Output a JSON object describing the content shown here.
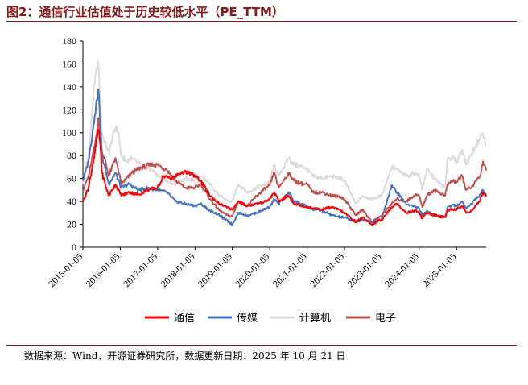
{
  "figure": {
    "title": "图2：通信行业估值处于历史较低水平（PE_TTM）",
    "source": "数据来源：Wind、开源证券研究所，数据更新日期：2025 年 10 月 21 日"
  },
  "chart_data": {
    "type": "line",
    "title": "",
    "xlabel": "",
    "ylabel": "",
    "ylim": [
      0,
      180
    ],
    "yticks": [
      0,
      20,
      40,
      60,
      80,
      100,
      120,
      140,
      160,
      180
    ],
    "xlim": [
      "2015-01-05",
      "2025-10-21"
    ],
    "xticks": [
      "2015-01-05",
      "2016-01-05",
      "2017-01-05",
      "2018-01-05",
      "2019-01-05",
      "2020-01-05",
      "2021-01-05",
      "2022-01-05",
      "2023-01-05",
      "2024-01-05",
      "2025-01-05"
    ],
    "grid": false,
    "legend_position": "bottom",
    "series": [
      {
        "name": "计算机",
        "color": "#dcdcdc",
        "points": [
          [
            "2015-01-05",
            55
          ],
          [
            "2015-03-01",
            80
          ],
          [
            "2015-04-20",
            135
          ],
          [
            "2015-05-20",
            155
          ],
          [
            "2015-06-05",
            160
          ],
          [
            "2015-06-25",
            130
          ],
          [
            "2015-07-10",
            100
          ],
          [
            "2015-08-20",
            88
          ],
          [
            "2015-09-15",
            82
          ],
          [
            "2015-10-20",
            95
          ],
          [
            "2015-11-20",
            105
          ],
          [
            "2015-12-20",
            100
          ],
          [
            "2016-01-15",
            80
          ],
          [
            "2016-03-01",
            75
          ],
          [
            "2016-05-01",
            78
          ],
          [
            "2016-08-01",
            72
          ],
          [
            "2016-11-01",
            68
          ],
          [
            "2017-01-05",
            62
          ],
          [
            "2017-04-01",
            58
          ],
          [
            "2017-07-01",
            55
          ],
          [
            "2017-10-01",
            60
          ],
          [
            "2018-01-05",
            58
          ],
          [
            "2018-03-01",
            62
          ],
          [
            "2018-06-01",
            55
          ],
          [
            "2018-09-01",
            45
          ],
          [
            "2018-12-01",
            40
          ],
          [
            "2019-01-05",
            40
          ],
          [
            "2019-03-01",
            55
          ],
          [
            "2019-06-01",
            48
          ],
          [
            "2019-09-01",
            52
          ],
          [
            "2019-12-01",
            55
          ],
          [
            "2020-01-05",
            58
          ],
          [
            "2020-02-20",
            72
          ],
          [
            "2020-04-01",
            62
          ],
          [
            "2020-07-10",
            78
          ],
          [
            "2020-09-01",
            72
          ],
          [
            "2020-12-01",
            70
          ],
          [
            "2021-01-05",
            68
          ],
          [
            "2021-03-01",
            62
          ],
          [
            "2021-06-01",
            60
          ],
          [
            "2021-09-01",
            62
          ],
          [
            "2021-12-01",
            60
          ],
          [
            "2022-01-05",
            58
          ],
          [
            "2022-03-01",
            48
          ],
          [
            "2022-04-27",
            38
          ],
          [
            "2022-07-01",
            45
          ],
          [
            "2022-10-01",
            42
          ],
          [
            "2023-01-05",
            45
          ],
          [
            "2023-04-10",
            70
          ],
          [
            "2023-06-01",
            68
          ],
          [
            "2023-09-01",
            62
          ],
          [
            "2023-12-01",
            65
          ],
          [
            "2024-01-05",
            63
          ],
          [
            "2024-02-05",
            50
          ],
          [
            "2024-03-20",
            68
          ],
          [
            "2024-06-01",
            60
          ],
          [
            "2024-09-15",
            52
          ],
          [
            "2024-10-08",
            78
          ],
          [
            "2024-12-01",
            78
          ],
          [
            "2025-01-05",
            75
          ],
          [
            "2025-03-01",
            85
          ],
          [
            "2025-04-08",
            72
          ],
          [
            "2025-06-01",
            82
          ],
          [
            "2025-08-20",
            95
          ],
          [
            "2025-09-15",
            100
          ],
          [
            "2025-10-21",
            89
          ]
        ]
      },
      {
        "name": "电子",
        "color": "#c0504d",
        "points": [
          [
            "2015-01-05",
            50
          ],
          [
            "2015-03-01",
            62
          ],
          [
            "2015-05-01",
            88
          ],
          [
            "2015-06-05",
            113
          ],
          [
            "2015-07-08",
            85
          ],
          [
            "2015-08-20",
            72
          ],
          [
            "2015-09-15",
            62
          ],
          [
            "2015-11-20",
            78
          ],
          [
            "2016-01-15",
            55
          ],
          [
            "2016-05-01",
            65
          ],
          [
            "2016-08-01",
            70
          ],
          [
            "2016-11-01",
            72
          ],
          [
            "2017-01-05",
            72
          ],
          [
            "2017-04-01",
            68
          ],
          [
            "2017-07-01",
            58
          ],
          [
            "2017-10-01",
            52
          ],
          [
            "2018-01-05",
            52
          ],
          [
            "2018-03-01",
            55
          ],
          [
            "2018-06-01",
            42
          ],
          [
            "2018-09-01",
            32
          ],
          [
            "2018-12-01",
            27
          ],
          [
            "2019-01-05",
            27
          ],
          [
            "2019-03-01",
            40
          ],
          [
            "2019-06-01",
            36
          ],
          [
            "2019-09-01",
            45
          ],
          [
            "2019-12-01",
            52
          ],
          [
            "2020-01-05",
            54
          ],
          [
            "2020-02-20",
            65
          ],
          [
            "2020-04-01",
            52
          ],
          [
            "2020-07-10",
            65
          ],
          [
            "2020-09-01",
            58
          ],
          [
            "2020-12-01",
            55
          ],
          [
            "2021-01-05",
            55
          ],
          [
            "2021-03-01",
            48
          ],
          [
            "2021-06-01",
            48
          ],
          [
            "2021-09-01",
            45
          ],
          [
            "2021-12-01",
            44
          ],
          [
            "2022-01-05",
            42
          ],
          [
            "2022-04-27",
            28
          ],
          [
            "2022-07-01",
            33
          ],
          [
            "2022-10-01",
            22
          ],
          [
            "2023-01-05",
            28
          ],
          [
            "2023-04-10",
            38
          ],
          [
            "2023-06-01",
            42
          ],
          [
            "2023-09-01",
            40
          ],
          [
            "2023-12-01",
            46
          ],
          [
            "2024-01-05",
            45
          ],
          [
            "2024-02-05",
            35
          ],
          [
            "2024-03-20",
            45
          ],
          [
            "2024-06-01",
            50
          ],
          [
            "2024-09-15",
            45
          ],
          [
            "2024-10-08",
            55
          ],
          [
            "2024-12-01",
            58
          ],
          [
            "2025-01-05",
            57
          ],
          [
            "2025-03-01",
            62
          ],
          [
            "2025-04-08",
            50
          ],
          [
            "2025-06-01",
            52
          ],
          [
            "2025-08-20",
            62
          ],
          [
            "2025-09-20",
            75
          ],
          [
            "2025-10-21",
            67
          ]
        ]
      },
      {
        "name": "传媒",
        "color": "#4472c4",
        "points": [
          [
            "2015-01-05",
            58
          ],
          [
            "2015-03-01",
            75
          ],
          [
            "2015-05-01",
            115
          ],
          [
            "2015-06-05",
            138
          ],
          [
            "2015-06-25",
            110
          ],
          [
            "2015-07-10",
            80
          ],
          [
            "2015-08-20",
            65
          ],
          [
            "2015-09-15",
            55
          ],
          [
            "2015-11-20",
            65
          ],
          [
            "2016-01-15",
            52
          ],
          [
            "2016-04-01",
            55
          ],
          [
            "2016-07-01",
            50
          ],
          [
            "2016-10-01",
            52
          ],
          [
            "2017-01-05",
            50
          ],
          [
            "2017-04-01",
            48
          ],
          [
            "2017-07-01",
            40
          ],
          [
            "2017-10-01",
            38
          ],
          [
            "2018-01-05",
            36
          ],
          [
            "2018-03-01",
            38
          ],
          [
            "2018-06-01",
            32
          ],
          [
            "2018-09-01",
            28
          ],
          [
            "2018-12-01",
            22
          ],
          [
            "2019-01-05",
            20
          ],
          [
            "2019-03-01",
            30
          ],
          [
            "2019-06-01",
            28
          ],
          [
            "2019-09-01",
            30
          ],
          [
            "2019-12-01",
            34
          ],
          [
            "2020-01-05",
            35
          ],
          [
            "2020-02-20",
            42
          ],
          [
            "2020-04-01",
            38
          ],
          [
            "2020-07-10",
            48
          ],
          [
            "2020-09-01",
            40
          ],
          [
            "2020-12-01",
            37
          ],
          [
            "2021-01-05",
            36
          ],
          [
            "2021-03-01",
            33
          ],
          [
            "2021-06-01",
            32
          ],
          [
            "2021-09-01",
            28
          ],
          [
            "2021-12-01",
            26
          ],
          [
            "2022-01-05",
            26
          ],
          [
            "2022-04-27",
            22
          ],
          [
            "2022-07-01",
            24
          ],
          [
            "2022-10-01",
            22
          ],
          [
            "2023-01-05",
            25
          ],
          [
            "2023-04-10",
            54
          ],
          [
            "2023-06-01",
            48
          ],
          [
            "2023-09-01",
            38
          ],
          [
            "2023-12-01",
            35
          ],
          [
            "2024-01-05",
            34
          ],
          [
            "2024-02-05",
            28
          ],
          [
            "2024-03-20",
            32
          ],
          [
            "2024-06-01",
            28
          ],
          [
            "2024-09-15",
            26
          ],
          [
            "2024-10-08",
            35
          ],
          [
            "2024-12-01",
            37
          ],
          [
            "2025-01-05",
            36
          ],
          [
            "2025-03-01",
            40
          ],
          [
            "2025-04-08",
            34
          ],
          [
            "2025-06-01",
            38
          ],
          [
            "2025-08-20",
            46
          ],
          [
            "2025-09-20",
            50
          ],
          [
            "2025-10-21",
            45
          ]
        ]
      },
      {
        "name": "通信",
        "color": "#ff0000",
        "points": [
          [
            "2015-01-05",
            40
          ],
          [
            "2015-03-01",
            52
          ],
          [
            "2015-05-01",
            82
          ],
          [
            "2015-06-05",
            103
          ],
          [
            "2015-06-25",
            90
          ],
          [
            "2015-07-10",
            65
          ],
          [
            "2015-08-20",
            52
          ],
          [
            "2015-09-15",
            45
          ],
          [
            "2015-11-20",
            55
          ],
          [
            "2016-01-15",
            45
          ],
          [
            "2016-04-01",
            48
          ],
          [
            "2016-07-01",
            46
          ],
          [
            "2016-10-01",
            50
          ],
          [
            "2017-01-05",
            52
          ],
          [
            "2017-03-01",
            62
          ],
          [
            "2017-06-01",
            60
          ],
          [
            "2017-09-01",
            66
          ],
          [
            "2017-12-01",
            64
          ],
          [
            "2018-01-05",
            62
          ],
          [
            "2018-03-01",
            58
          ],
          [
            "2018-06-01",
            45
          ],
          [
            "2018-09-01",
            38
          ],
          [
            "2018-12-01",
            34
          ],
          [
            "2019-01-05",
            33
          ],
          [
            "2019-03-01",
            40
          ],
          [
            "2019-06-01",
            36
          ],
          [
            "2019-09-01",
            38
          ],
          [
            "2019-12-01",
            40
          ],
          [
            "2020-01-05",
            42
          ],
          [
            "2020-02-20",
            48
          ],
          [
            "2020-04-01",
            40
          ],
          [
            "2020-07-10",
            45
          ],
          [
            "2020-09-01",
            38
          ],
          [
            "2020-12-01",
            36
          ],
          [
            "2021-01-05",
            35
          ],
          [
            "2021-03-01",
            34
          ],
          [
            "2021-06-01",
            33
          ],
          [
            "2021-09-01",
            35
          ],
          [
            "2021-12-01",
            32
          ],
          [
            "2022-01-05",
            30
          ],
          [
            "2022-04-27",
            22
          ],
          [
            "2022-07-01",
            26
          ],
          [
            "2022-10-01",
            20
          ],
          [
            "2023-01-05",
            24
          ],
          [
            "2023-04-10",
            35
          ],
          [
            "2023-06-01",
            38
          ],
          [
            "2023-09-01",
            30
          ],
          [
            "2023-12-01",
            32
          ],
          [
            "2024-01-05",
            30
          ],
          [
            "2024-02-05",
            25
          ],
          [
            "2024-03-20",
            30
          ],
          [
            "2024-06-01",
            28
          ],
          [
            "2024-09-15",
            26
          ],
          [
            "2024-10-08",
            32
          ],
          [
            "2024-12-01",
            33
          ],
          [
            "2025-01-05",
            33
          ],
          [
            "2025-03-01",
            36
          ],
          [
            "2025-04-08",
            30
          ],
          [
            "2025-06-01",
            32
          ],
          [
            "2025-08-20",
            40
          ],
          [
            "2025-09-20",
            48
          ],
          [
            "2025-10-21",
            44
          ]
        ]
      }
    ],
    "legend_order": [
      "通信",
      "传媒",
      "计算机",
      "电子"
    ]
  }
}
